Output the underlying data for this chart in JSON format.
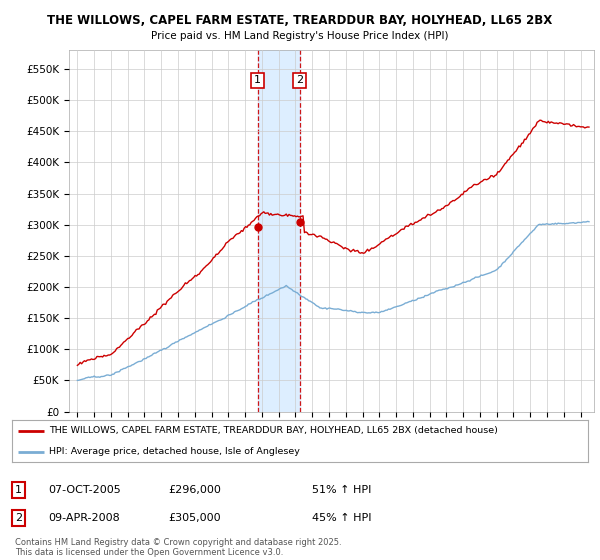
{
  "title1": "THE WILLOWS, CAPEL FARM ESTATE, TREARDDUR BAY, HOLYHEAD, LL65 2BX",
  "title2": "Price paid vs. HM Land Registry's House Price Index (HPI)",
  "ylabel_ticks": [
    "£0",
    "£50K",
    "£100K",
    "£150K",
    "£200K",
    "£250K",
    "£300K",
    "£350K",
    "£400K",
    "£450K",
    "£500K",
    "£550K"
  ],
  "ytick_vals": [
    0,
    50000,
    100000,
    150000,
    200000,
    250000,
    300000,
    350000,
    400000,
    450000,
    500000,
    550000
  ],
  "ylim": [
    0,
    580000
  ],
  "sale1_year": 2005.75,
  "sale1_price": 296000,
  "sale1_date": "07-OCT-2005",
  "sale1_pct": "51%",
  "sale2_year": 2008.25,
  "sale2_price": 305000,
  "sale2_date": "09-APR-2008",
  "sale2_pct": "45%",
  "red_color": "#cc0000",
  "blue_color": "#7aadd4",
  "shade_color": "#ddeeff",
  "legend_line1": "THE WILLOWS, CAPEL FARM ESTATE, TREARDDUR BAY, HOLYHEAD, LL65 2BX (detached house)",
  "legend_line2": "HPI: Average price, detached house, Isle of Anglesey",
  "footnote": "Contains HM Land Registry data © Crown copyright and database right 2025.\nThis data is licensed under the Open Government Licence v3.0.",
  "background_color": "#ffffff",
  "grid_color": "#cccccc"
}
